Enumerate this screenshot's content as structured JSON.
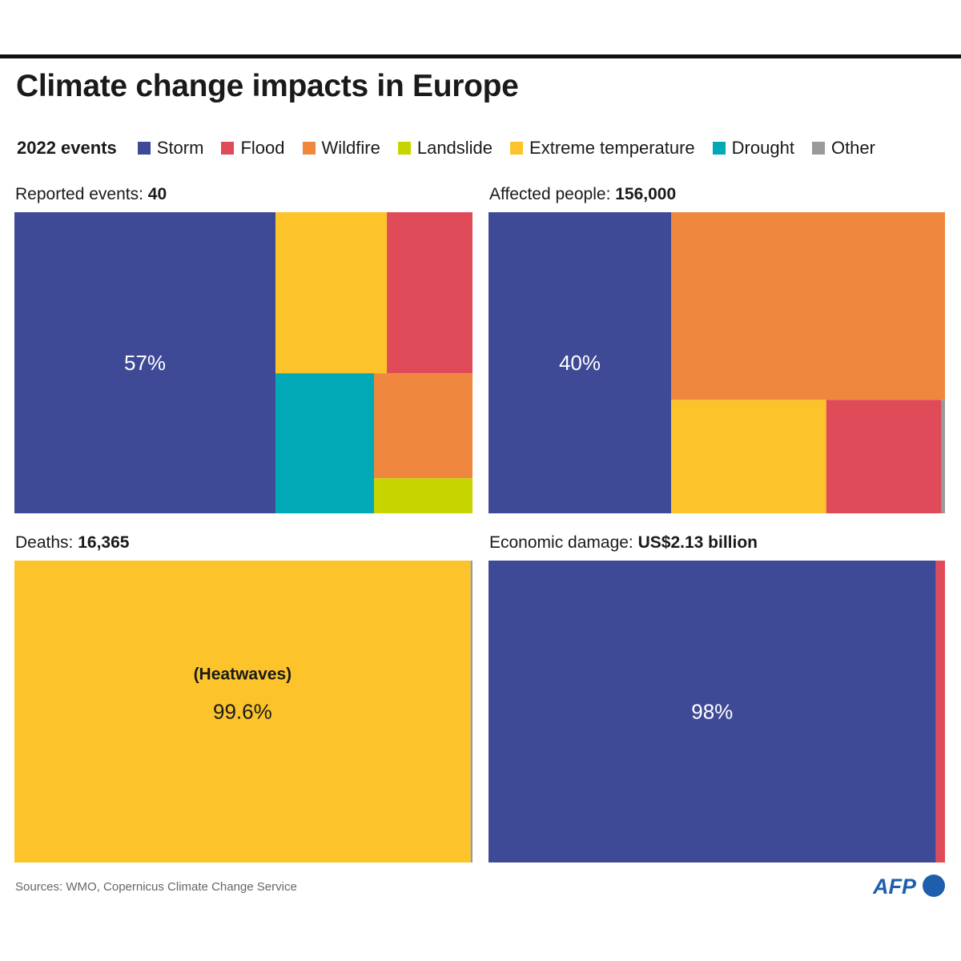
{
  "title": "Climate change impacts in Europe",
  "legend": {
    "lead": "2022 events",
    "items": [
      {
        "key": "storm",
        "label": "Storm",
        "color": "#3f4a97"
      },
      {
        "key": "flood",
        "label": "Flood",
        "color": "#e04b5a"
      },
      {
        "key": "wildfire",
        "label": "Wildfire",
        "color": "#f0873e"
      },
      {
        "key": "landslide",
        "label": "Landslide",
        "color": "#c8d400"
      },
      {
        "key": "extreme",
        "label": "Extreme temperature",
        "color": "#fcc42a"
      },
      {
        "key": "drought",
        "label": "Drought",
        "color": "#00a9b5"
      },
      {
        "key": "other",
        "label": "Other",
        "color": "#9a9a9a"
      }
    ]
  },
  "chart_data": [
    {
      "type": "treemap",
      "title_label": "Reported events: ",
      "title_value": "40",
      "unit": "share of events (%)",
      "values": {
        "storm": 57,
        "extreme": 13,
        "flood": 10,
        "drought": 10,
        "wildfire": 7.5,
        "landslide": 2.5
      },
      "labels": [
        {
          "key": "storm",
          "text": "57%"
        }
      ]
    },
    {
      "type": "treemap",
      "title_label": "Affected people: ",
      "title_value": "156,000",
      "unit": "share of affected people (%)",
      "values": {
        "storm": 40,
        "wildfire": 37.4,
        "extreme": 12.8,
        "flood": 9.5,
        "other": 0.3
      },
      "labels": [
        {
          "key": "storm",
          "text": "40%"
        }
      ]
    },
    {
      "type": "treemap",
      "title_label": "Deaths: ",
      "title_value": "16,365",
      "unit": "share of deaths (%)",
      "values": {
        "extreme": 99.6,
        "other": 0.4
      },
      "labels": [
        {
          "key": "extreme",
          "sub": "(Heatwaves)",
          "text": "99.6%"
        }
      ]
    },
    {
      "type": "treemap",
      "title_label": "Economic damage: ",
      "title_value": "US$2.13 billion",
      "unit": "share of economic damage (%)",
      "values": {
        "storm": 98,
        "flood": 2
      },
      "labels": [
        {
          "key": "storm",
          "text": "98%"
        }
      ]
    }
  ],
  "footer": {
    "source": "Sources: WMO, Copernicus Climate Change Service",
    "logo": "AFP"
  }
}
